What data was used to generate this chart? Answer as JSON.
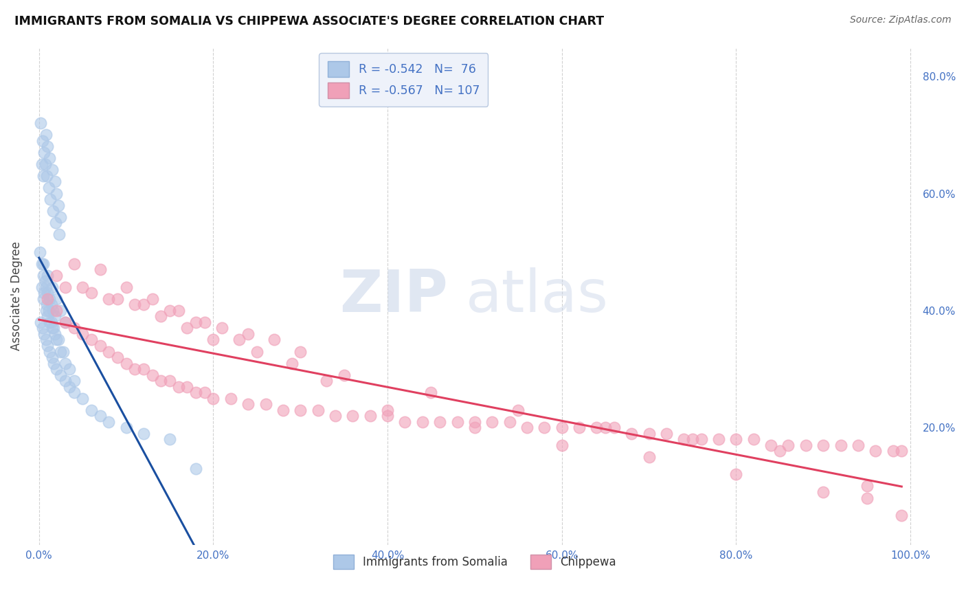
{
  "title": "IMMIGRANTS FROM SOMALIA VS CHIPPEWA ASSOCIATE'S DEGREE CORRELATION CHART",
  "source": "Source: ZipAtlas.com",
  "ylabel": "Associate's Degree",
  "series": [
    {
      "name": "Immigrants from Somalia",
      "R": -0.542,
      "N": 76,
      "color": "#adc8e8",
      "line_color": "#1a4fa0",
      "x": [
        0.3,
        0.5,
        0.8,
        1.0,
        1.2,
        1.5,
        1.8,
        2.0,
        2.2,
        2.5,
        0.2,
        0.4,
        0.6,
        0.7,
        0.9,
        1.1,
        1.3,
        1.6,
        1.9,
        2.3,
        0.1,
        0.3,
        0.5,
        0.7,
        0.8,
        1.0,
        1.2,
        1.4,
        1.6,
        1.8,
        0.2,
        0.4,
        0.6,
        0.8,
        1.0,
        1.2,
        1.5,
        1.7,
        2.0,
        2.5,
        3.0,
        3.5,
        4.0,
        5.0,
        6.0,
        7.0,
        8.0,
        10.0,
        12.0,
        15.0,
        0.5,
        0.8,
        1.0,
        1.2,
        1.5,
        1.8,
        2.0,
        2.5,
        3.0,
        4.0,
        0.3,
        0.6,
        0.9,
        1.1,
        1.4,
        1.7,
        2.2,
        2.8,
        3.5,
        18.0,
        0.5,
        1.0,
        1.5,
        2.0,
        2.5,
        3.0
      ],
      "y": [
        65,
        63,
        70,
        68,
        66,
        64,
        62,
        60,
        58,
        56,
        72,
        69,
        67,
        65,
        63,
        61,
        59,
        57,
        55,
        53,
        50,
        48,
        46,
        45,
        44,
        43,
        42,
        41,
        40,
        39,
        38,
        37,
        36,
        35,
        34,
        33,
        32,
        31,
        30,
        29,
        28,
        27,
        26,
        25,
        23,
        22,
        21,
        20,
        19,
        18,
        42,
        40,
        39,
        38,
        37,
        36,
        35,
        33,
        31,
        28,
        44,
        43,
        41,
        40,
        38,
        37,
        35,
        33,
        30,
        13,
        48,
        46,
        44,
        42,
        40,
        38
      ]
    },
    {
      "name": "Chippewa",
      "R": -0.567,
      "N": 107,
      "color": "#f0a0b8",
      "line_color": "#e04060",
      "x": [
        1.0,
        2.0,
        3.0,
        4.0,
        5.0,
        6.0,
        7.0,
        8.0,
        9.0,
        10.0,
        11.0,
        12.0,
        13.0,
        14.0,
        15.0,
        16.0,
        17.0,
        18.0,
        19.0,
        20.0,
        22.0,
        24.0,
        26.0,
        28.0,
        30.0,
        32.0,
        34.0,
        36.0,
        38.0,
        40.0,
        42.0,
        44.0,
        46.0,
        48.0,
        50.0,
        52.0,
        54.0,
        56.0,
        58.0,
        60.0,
        62.0,
        64.0,
        66.0,
        68.0,
        70.0,
        72.0,
        74.0,
        76.0,
        78.0,
        80.0,
        82.0,
        84.0,
        86.0,
        88.0,
        90.0,
        92.0,
        94.0,
        96.0,
        98.0,
        99.0,
        3.0,
        6.0,
        9.0,
        12.0,
        15.0,
        18.0,
        21.0,
        24.0,
        27.0,
        30.0,
        2.0,
        5.0,
        8.0,
        11.0,
        14.0,
        17.0,
        20.0,
        25.0,
        35.0,
        45.0,
        55.0,
        65.0,
        75.0,
        85.0,
        95.0,
        4.0,
        7.0,
        10.0,
        13.0,
        16.0,
        19.0,
        23.0,
        29.0,
        33.0,
        40.0,
        50.0,
        60.0,
        70.0,
        80.0,
        90.0,
        95.0,
        99.0
      ],
      "y": [
        42,
        40,
        38,
        37,
        36,
        35,
        34,
        33,
        32,
        31,
        30,
        30,
        29,
        28,
        28,
        27,
        27,
        26,
        26,
        25,
        25,
        24,
        24,
        23,
        23,
        23,
        22,
        22,
        22,
        22,
        21,
        21,
        21,
        21,
        21,
        21,
        21,
        20,
        20,
        20,
        20,
        20,
        20,
        19,
        19,
        19,
        18,
        18,
        18,
        18,
        18,
        17,
        17,
        17,
        17,
        17,
        17,
        16,
        16,
        16,
        44,
        43,
        42,
        41,
        40,
        38,
        37,
        36,
        35,
        33,
        46,
        44,
        42,
        41,
        39,
        37,
        35,
        33,
        29,
        26,
        23,
        20,
        18,
        16,
        10,
        48,
        47,
        44,
        42,
        40,
        38,
        35,
        31,
        28,
        23,
        20,
        17,
        15,
        12,
        9,
        8,
        5
      ]
    }
  ],
  "xlim": [
    -1,
    101
  ],
  "ylim": [
    0,
    85
  ],
  "right_yticks": [
    20,
    40,
    60,
    80
  ],
  "xticks": [
    0,
    20,
    40,
    60,
    80,
    100
  ],
  "xticklabels": [
    "0.0%",
    "20.0%",
    "40.0%",
    "60.0%",
    "80.0%",
    "100.0%"
  ],
  "ytick_color": "#4472c4",
  "grid_color": "#cccccc",
  "watermark_zip": "ZIP",
  "watermark_atlas": "atlas",
  "watermark_color_zip": "#c8d4e8",
  "watermark_color_atlas": "#c8d4e8",
  "background_color": "#ffffff",
  "legend_box_color": "#eef2fa",
  "legend_border_color": "#b8c8e0"
}
